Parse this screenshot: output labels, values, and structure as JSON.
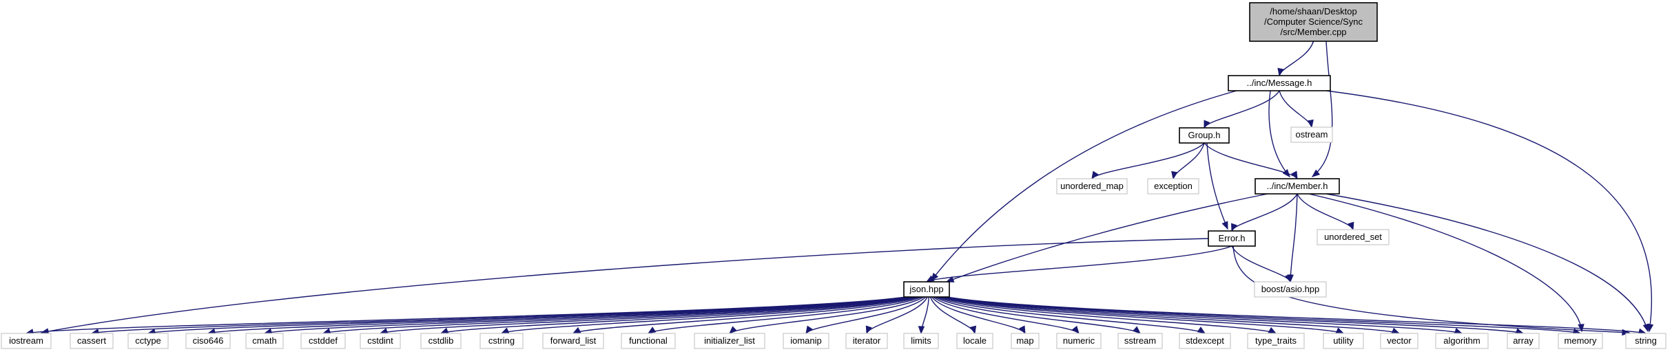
{
  "diagram": {
    "nodes": [
      {
        "id": "root",
        "kind": "root",
        "lines": [
          "/home/shaan/Desktop",
          "/Computer Science/Sync",
          "/src/Member.cpp"
        ]
      },
      {
        "id": "message",
        "kind": "internal",
        "lines": [
          "../inc/Message.h"
        ]
      },
      {
        "id": "ostream",
        "kind": "external",
        "lines": [
          "ostream"
        ]
      },
      {
        "id": "group",
        "kind": "internal",
        "lines": [
          "Group.h"
        ]
      },
      {
        "id": "member",
        "kind": "internal",
        "lines": [
          "../inc/Member.h"
        ]
      },
      {
        "id": "unordered_map",
        "kind": "external",
        "lines": [
          "unordered_map"
        ]
      },
      {
        "id": "exception",
        "kind": "external",
        "lines": [
          "exception"
        ]
      },
      {
        "id": "unordered_set",
        "kind": "external",
        "lines": [
          "unordered_set"
        ]
      },
      {
        "id": "error",
        "kind": "internal",
        "lines": [
          "Error.h"
        ]
      },
      {
        "id": "boost_asio",
        "kind": "external",
        "lines": [
          "boost/asio.hpp"
        ]
      },
      {
        "id": "json",
        "kind": "internal",
        "lines": [
          "json.hpp"
        ]
      },
      {
        "id": "iostream",
        "kind": "external",
        "lines": [
          "iostream"
        ]
      },
      {
        "id": "cassert",
        "kind": "external",
        "lines": [
          "cassert"
        ]
      },
      {
        "id": "cctype",
        "kind": "external",
        "lines": [
          "cctype"
        ]
      },
      {
        "id": "ciso646",
        "kind": "external",
        "lines": [
          "ciso646"
        ]
      },
      {
        "id": "cmath",
        "kind": "external",
        "lines": [
          "cmath"
        ]
      },
      {
        "id": "cstddef",
        "kind": "external",
        "lines": [
          "cstddef"
        ]
      },
      {
        "id": "cstdint",
        "kind": "external",
        "lines": [
          "cstdint"
        ]
      },
      {
        "id": "cstdlib",
        "kind": "external",
        "lines": [
          "cstdlib"
        ]
      },
      {
        "id": "cstring",
        "kind": "external",
        "lines": [
          "cstring"
        ]
      },
      {
        "id": "forward_list",
        "kind": "external",
        "lines": [
          "forward_list"
        ]
      },
      {
        "id": "functional",
        "kind": "external",
        "lines": [
          "functional"
        ]
      },
      {
        "id": "initializer_list",
        "kind": "external",
        "lines": [
          "initializer_list"
        ]
      },
      {
        "id": "iomanip",
        "kind": "external",
        "lines": [
          "iomanip"
        ]
      },
      {
        "id": "iterator",
        "kind": "external",
        "lines": [
          "iterator"
        ]
      },
      {
        "id": "limits",
        "kind": "external",
        "lines": [
          "limits"
        ]
      },
      {
        "id": "locale",
        "kind": "external",
        "lines": [
          "locale"
        ]
      },
      {
        "id": "map",
        "kind": "external",
        "lines": [
          "map"
        ]
      },
      {
        "id": "numeric",
        "kind": "external",
        "lines": [
          "numeric"
        ]
      },
      {
        "id": "sstream",
        "kind": "external",
        "lines": [
          "sstream"
        ]
      },
      {
        "id": "stdexcept",
        "kind": "external",
        "lines": [
          "stdexcept"
        ]
      },
      {
        "id": "type_traits",
        "kind": "external",
        "lines": [
          "type_traits"
        ]
      },
      {
        "id": "utility",
        "kind": "external",
        "lines": [
          "utility"
        ]
      },
      {
        "id": "vector",
        "kind": "external",
        "lines": [
          "vector"
        ]
      },
      {
        "id": "algorithm",
        "kind": "external",
        "lines": [
          "algorithm"
        ]
      },
      {
        "id": "array",
        "kind": "external",
        "lines": [
          "array"
        ]
      },
      {
        "id": "memory",
        "kind": "external",
        "lines": [
          "memory"
        ]
      },
      {
        "id": "string",
        "kind": "external",
        "lines": [
          "string"
        ]
      }
    ],
    "edges": [
      [
        "root",
        "message"
      ],
      [
        "root",
        "member"
      ],
      [
        "message",
        "ostream"
      ],
      [
        "message",
        "group"
      ],
      [
        "message",
        "member"
      ],
      [
        "message",
        "json"
      ],
      [
        "message",
        "string"
      ],
      [
        "group",
        "unordered_map"
      ],
      [
        "group",
        "exception"
      ],
      [
        "group",
        "member"
      ],
      [
        "group",
        "error"
      ],
      [
        "member",
        "error"
      ],
      [
        "member",
        "unordered_set"
      ],
      [
        "member",
        "boost_asio"
      ],
      [
        "member",
        "json"
      ],
      [
        "member",
        "memory"
      ],
      [
        "member",
        "string"
      ],
      [
        "error",
        "boost_asio"
      ],
      [
        "error",
        "json"
      ],
      [
        "error",
        "iostream"
      ],
      [
        "error",
        "string"
      ],
      [
        "json",
        "iostream"
      ],
      [
        "json",
        "cassert"
      ],
      [
        "json",
        "cctype"
      ],
      [
        "json",
        "ciso646"
      ],
      [
        "json",
        "cmath"
      ],
      [
        "json",
        "cstddef"
      ],
      [
        "json",
        "cstdint"
      ],
      [
        "json",
        "cstdlib"
      ],
      [
        "json",
        "cstring"
      ],
      [
        "json",
        "forward_list"
      ],
      [
        "json",
        "functional"
      ],
      [
        "json",
        "initializer_list"
      ],
      [
        "json",
        "iomanip"
      ],
      [
        "json",
        "iterator"
      ],
      [
        "json",
        "limits"
      ],
      [
        "json",
        "locale"
      ],
      [
        "json",
        "map"
      ],
      [
        "json",
        "numeric"
      ],
      [
        "json",
        "sstream"
      ],
      [
        "json",
        "stdexcept"
      ],
      [
        "json",
        "type_traits"
      ],
      [
        "json",
        "utility"
      ],
      [
        "json",
        "vector"
      ],
      [
        "json",
        "algorithm"
      ],
      [
        "json",
        "array"
      ],
      [
        "json",
        "memory"
      ],
      [
        "json",
        "string"
      ]
    ],
    "colors": {
      "edge": "#191970",
      "root_fill": "#bfbfbf",
      "external_border": "#c8c8c8",
      "internal_border": "#000000"
    }
  }
}
